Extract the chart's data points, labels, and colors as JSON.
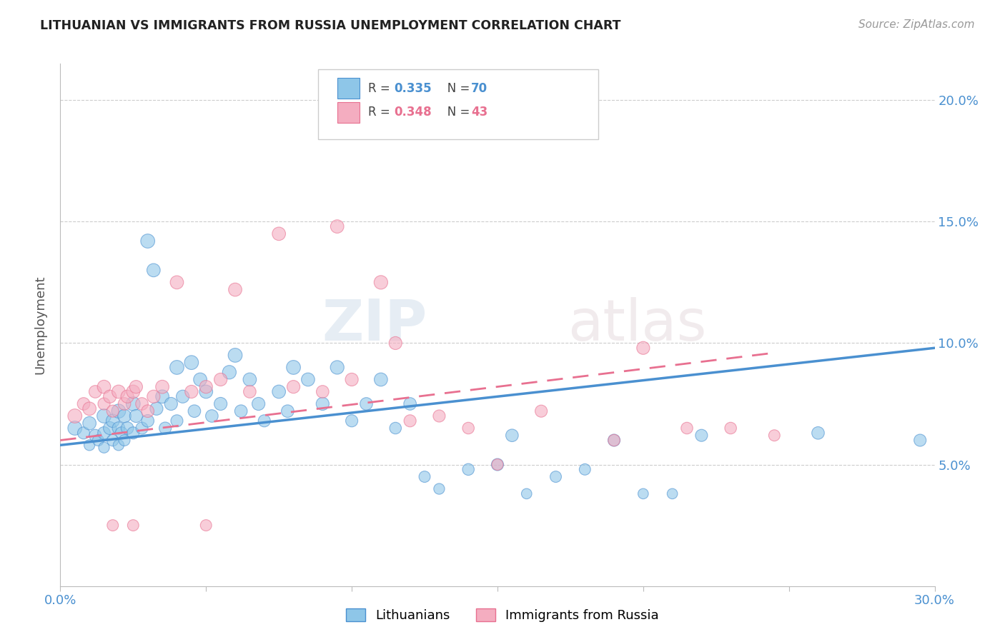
{
  "title": "LITHUANIAN VS IMMIGRANTS FROM RUSSIA UNEMPLOYMENT CORRELATION CHART",
  "source": "Source: ZipAtlas.com",
  "ylabel": "Unemployment",
  "ytick_labels": [
    "5.0%",
    "10.0%",
    "15.0%",
    "20.0%"
  ],
  "ytick_values": [
    0.05,
    0.1,
    0.15,
    0.2
  ],
  "xmin": 0.0,
  "xmax": 0.3,
  "ymin": 0.0,
  "ymax": 0.215,
  "legend_r1": "0.335",
  "legend_n1": "70",
  "legend_r2": "0.348",
  "legend_n2": "43",
  "legend_label1": "Lithuanians",
  "legend_label2": "Immigrants from Russia",
  "color_blue": "#8ec6e8",
  "color_pink": "#f4adc0",
  "color_blue_dark": "#4a90d0",
  "color_pink_dark": "#e87090",
  "watermark_zip": "ZIP",
  "watermark_atlas": "atlas",
  "blue_trend_x": [
    0.0,
    0.3
  ],
  "blue_trend_y": [
    0.058,
    0.098
  ],
  "pink_trend_x": [
    0.0,
    0.245
  ],
  "pink_trend_y": [
    0.06,
    0.096
  ],
  "blue_scatter_x": [
    0.005,
    0.008,
    0.01,
    0.01,
    0.012,
    0.013,
    0.015,
    0.015,
    0.015,
    0.017,
    0.018,
    0.018,
    0.02,
    0.02,
    0.02,
    0.021,
    0.022,
    0.022,
    0.023,
    0.025,
    0.025,
    0.026,
    0.028,
    0.03,
    0.03,
    0.032,
    0.033,
    0.035,
    0.036,
    0.038,
    0.04,
    0.04,
    0.042,
    0.045,
    0.046,
    0.048,
    0.05,
    0.052,
    0.055,
    0.058,
    0.06,
    0.062,
    0.065,
    0.068,
    0.07,
    0.075,
    0.078,
    0.08,
    0.085,
    0.09,
    0.095,
    0.1,
    0.105,
    0.11,
    0.115,
    0.12,
    0.125,
    0.13,
    0.14,
    0.15,
    0.155,
    0.16,
    0.17,
    0.18,
    0.19,
    0.2,
    0.21,
    0.22,
    0.26,
    0.295
  ],
  "blue_scatter_y": [
    0.065,
    0.063,
    0.067,
    0.058,
    0.062,
    0.06,
    0.07,
    0.063,
    0.057,
    0.065,
    0.068,
    0.06,
    0.072,
    0.065,
    0.058,
    0.063,
    0.07,
    0.06,
    0.065,
    0.075,
    0.063,
    0.07,
    0.065,
    0.142,
    0.068,
    0.13,
    0.073,
    0.078,
    0.065,
    0.075,
    0.09,
    0.068,
    0.078,
    0.092,
    0.072,
    0.085,
    0.08,
    0.07,
    0.075,
    0.088,
    0.095,
    0.072,
    0.085,
    0.075,
    0.068,
    0.08,
    0.072,
    0.09,
    0.085,
    0.075,
    0.09,
    0.068,
    0.075,
    0.085,
    0.065,
    0.075,
    0.045,
    0.04,
    0.048,
    0.05,
    0.062,
    0.038,
    0.045,
    0.048,
    0.06,
    0.038,
    0.038,
    0.062,
    0.063,
    0.06
  ],
  "blue_scatter_size": [
    200,
    150,
    180,
    120,
    150,
    130,
    200,
    160,
    120,
    170,
    180,
    140,
    200,
    160,
    120,
    150,
    180,
    130,
    160,
    200,
    150,
    170,
    150,
    200,
    160,
    180,
    170,
    180,
    150,
    170,
    200,
    150,
    170,
    200,
    160,
    180,
    180,
    160,
    170,
    190,
    200,
    160,
    180,
    170,
    150,
    180,
    160,
    200,
    180,
    170,
    190,
    150,
    160,
    180,
    140,
    160,
    130,
    120,
    140,
    150,
    160,
    110,
    130,
    130,
    150,
    110,
    110,
    150,
    160,
    150
  ],
  "pink_scatter_x": [
    0.005,
    0.008,
    0.01,
    0.012,
    0.015,
    0.015,
    0.017,
    0.018,
    0.02,
    0.022,
    0.023,
    0.025,
    0.026,
    0.028,
    0.03,
    0.032,
    0.035,
    0.04,
    0.045,
    0.05,
    0.055,
    0.06,
    0.065,
    0.075,
    0.08,
    0.09,
    0.1,
    0.11,
    0.115,
    0.12,
    0.13,
    0.14,
    0.15,
    0.165,
    0.19,
    0.2,
    0.215,
    0.23,
    0.245,
    0.05,
    0.095,
    0.018,
    0.025
  ],
  "pink_scatter_y": [
    0.07,
    0.075,
    0.073,
    0.08,
    0.082,
    0.075,
    0.078,
    0.072,
    0.08,
    0.075,
    0.078,
    0.08,
    0.082,
    0.075,
    0.072,
    0.078,
    0.082,
    0.125,
    0.08,
    0.082,
    0.085,
    0.122,
    0.08,
    0.145,
    0.082,
    0.08,
    0.085,
    0.125,
    0.1,
    0.068,
    0.07,
    0.065,
    0.05,
    0.072,
    0.06,
    0.098,
    0.065,
    0.065,
    0.062,
    0.025,
    0.148,
    0.025,
    0.025
  ],
  "pink_scatter_size": [
    200,
    160,
    180,
    160,
    180,
    150,
    170,
    150,
    180,
    160,
    170,
    180,
    170,
    160,
    160,
    170,
    180,
    180,
    170,
    170,
    170,
    180,
    160,
    180,
    170,
    160,
    170,
    190,
    170,
    150,
    150,
    140,
    130,
    150,
    140,
    170,
    140,
    140,
    130,
    130,
    180,
    130,
    130
  ]
}
